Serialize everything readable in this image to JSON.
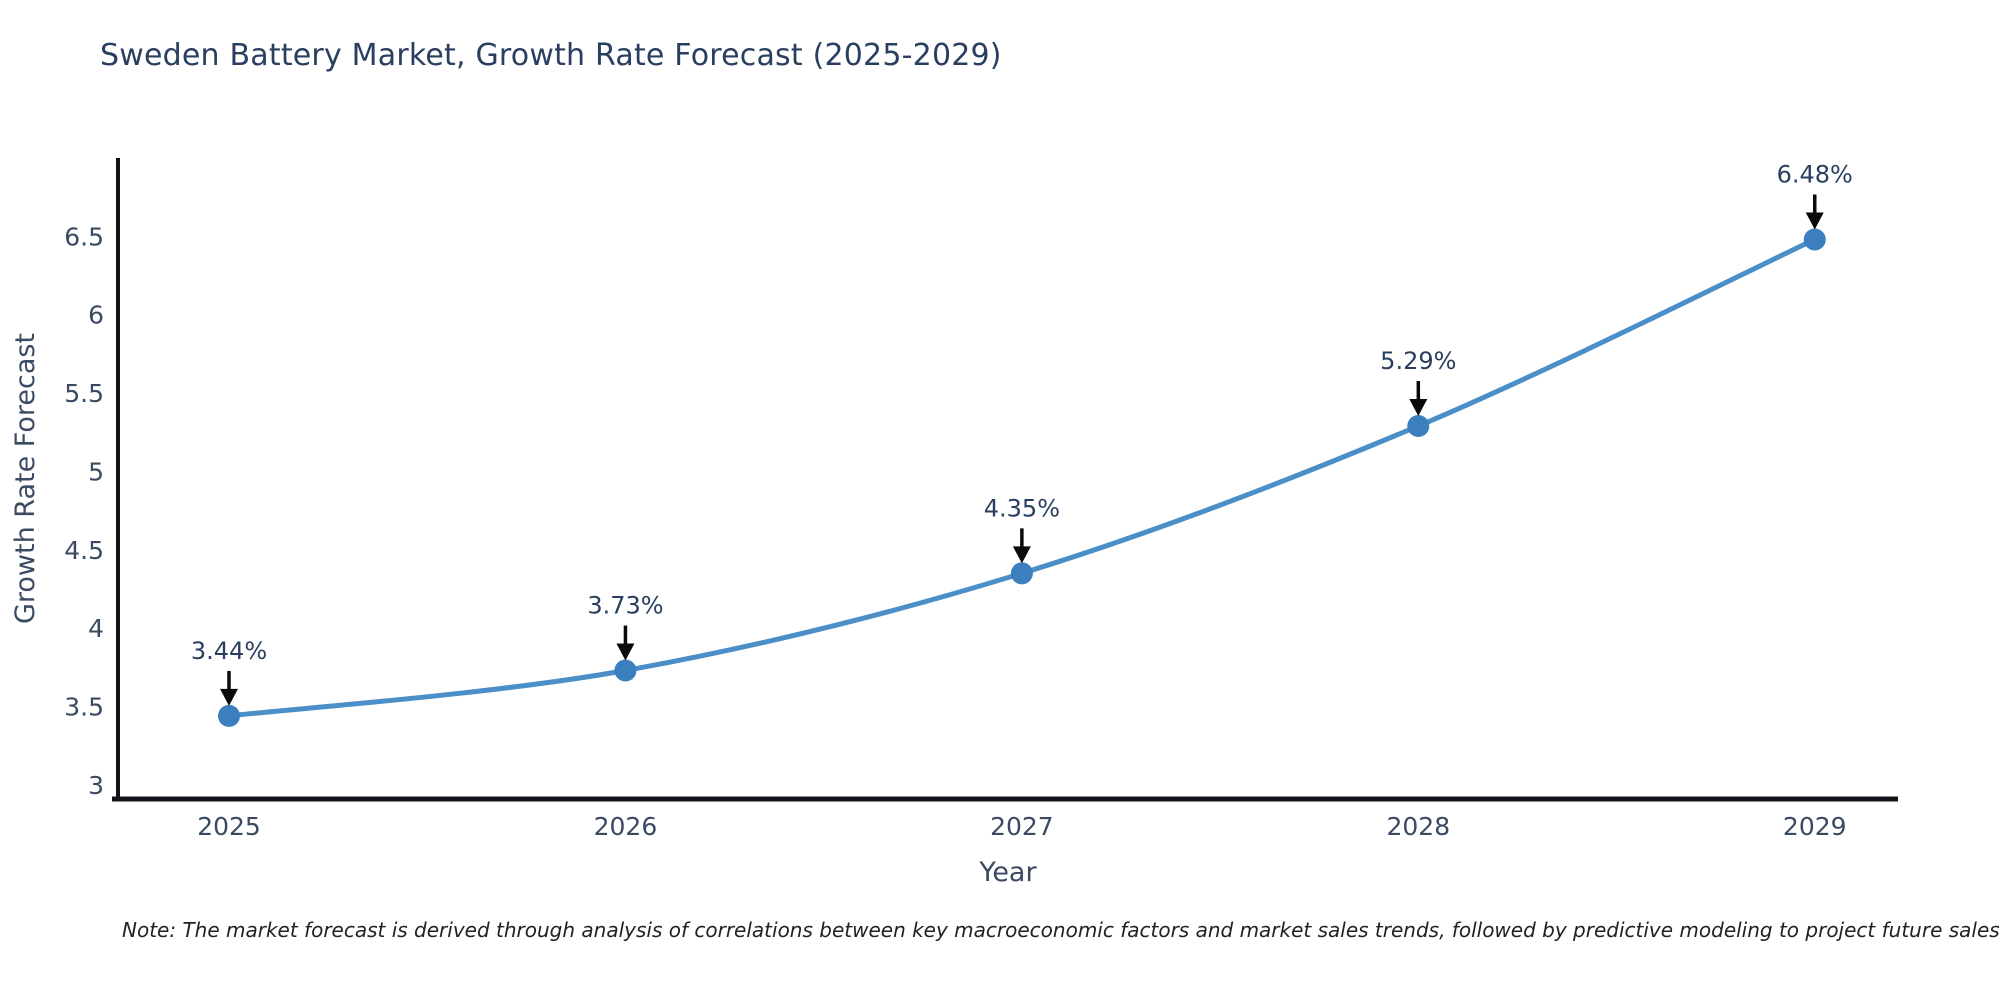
{
  "chart_data": {
    "type": "line",
    "title": "Sweden Battery Market, Growth Rate Forecast (2025-2029)",
    "xlabel": "Year",
    "ylabel": "Growth Rate Forecast",
    "x": [
      2025,
      2026,
      2027,
      2028,
      2029
    ],
    "series": [
      {
        "name": "Growth Rate Forecast",
        "values": [
          3.44,
          3.73,
          4.35,
          5.29,
          6.48
        ]
      }
    ],
    "point_labels": [
      "3.44%",
      "3.73%",
      "4.35%",
      "5.29%",
      "6.48%"
    ],
    "xticks": [
      "2025",
      "2026",
      "2027",
      "2028",
      "2029"
    ],
    "yticks": [
      "3",
      "3.5",
      "4",
      "4.5",
      "5",
      "5.5",
      "6",
      "6.5"
    ],
    "xlim": [
      2024.72,
      2029.21
    ],
    "ylim": [
      2.91,
      7.0
    ],
    "grid": false,
    "legend_position": "none",
    "colors": {
      "line": "#4a8fc7",
      "marker": "#3c7fbe",
      "arrow": "#0a0a0a",
      "axis": "#101418",
      "title_text": "#2a3f5f",
      "tick_text": "#3b4a63",
      "annotation_text": "#2a3f5f"
    }
  },
  "note": "Note: The market forecast is derived through analysis of correlations between key macroeconomic factors and market sales trends, followed by predictive modeling to project future sales"
}
